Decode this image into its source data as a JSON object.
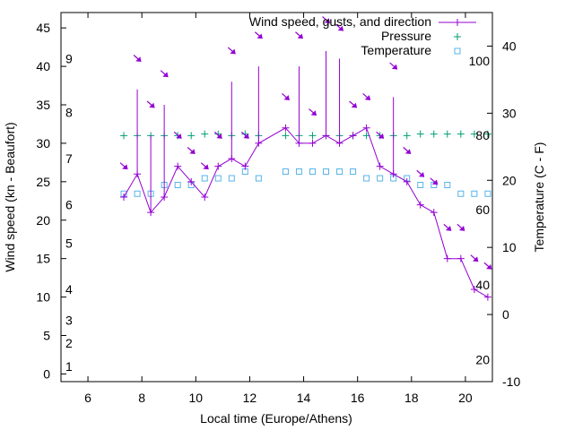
{
  "chart_data": {
    "type": "line",
    "xlabel": "Local time (Europe/Athens)",
    "ylabel": "Wind speed (kn - Beaufort)",
    "y2label": "Temperature (C - F)",
    "xlim": [
      5,
      21
    ],
    "ylim": [
      -1,
      47
    ],
    "y2lim": [
      -10,
      45
    ],
    "xticks": [
      6,
      8,
      10,
      12,
      14,
      16,
      18,
      20
    ],
    "yticks": [
      0,
      5,
      10,
      15,
      20,
      25,
      30,
      35,
      40,
      45
    ],
    "y2ticks": [
      -10,
      0,
      10,
      20,
      30,
      40
    ],
    "beaufort_labels": [
      {
        "label": "1",
        "kn": 1
      },
      {
        "label": "2",
        "kn": 4
      },
      {
        "label": "3",
        "kn": 7
      },
      {
        "label": "4",
        "kn": 11
      },
      {
        "label": "5",
        "kn": 17
      },
      {
        "label": "6",
        "kn": 22
      },
      {
        "label": "7",
        "kn": 28
      },
      {
        "label": "8",
        "kn": 34
      },
      {
        "label": "9",
        "kn": 41
      }
    ],
    "fahrenheit_labels": [
      {
        "label": "20",
        "c": -6.7
      },
      {
        "label": "40",
        "c": 4.4
      },
      {
        "label": "60",
        "c": 15.6
      },
      {
        "label": "80",
        "c": 26.7
      },
      {
        "label": "100",
        "c": 37.8
      }
    ],
    "legend": {
      "wind": "Wind speed, gusts, and direction",
      "pressure": "Pressure",
      "temperature": "Temperature"
    },
    "colors": {
      "wind": "#9400d3",
      "pressure": "#009e73",
      "temperature": "#56b4e9"
    },
    "wind": [
      {
        "x": 7.33,
        "speed": 23,
        "gust": 23
      },
      {
        "x": 7.83,
        "speed": 26,
        "gust": 37
      },
      {
        "x": 8.33,
        "speed": 21,
        "gust": 31
      },
      {
        "x": 8.83,
        "speed": 23,
        "gust": 35
      },
      {
        "x": 9.33,
        "speed": 27,
        "gust": 27
      },
      {
        "x": 9.83,
        "speed": 25,
        "gust": 25
      },
      {
        "x": 10.33,
        "speed": 23,
        "gust": 23
      },
      {
        "x": 10.83,
        "speed": 27,
        "gust": 27
      },
      {
        "x": 11.33,
        "speed": 28,
        "gust": 38
      },
      {
        "x": 11.83,
        "speed": 27,
        "gust": 27
      },
      {
        "x": 12.33,
        "speed": 30,
        "gust": 40
      },
      {
        "x": 13.33,
        "speed": 32,
        "gust": 32
      },
      {
        "x": 13.83,
        "speed": 30,
        "gust": 40
      },
      {
        "x": 14.33,
        "speed": 30,
        "gust": 30
      },
      {
        "x": 14.83,
        "speed": 31,
        "gust": 42
      },
      {
        "x": 15.33,
        "speed": 30,
        "gust": 41
      },
      {
        "x": 15.83,
        "speed": 31,
        "gust": 31
      },
      {
        "x": 16.33,
        "speed": 32,
        "gust": 32
      },
      {
        "x": 16.83,
        "speed": 27,
        "gust": 27
      },
      {
        "x": 17.33,
        "speed": 26,
        "gust": 36
      },
      {
        "x": 17.83,
        "speed": 25,
        "gust": 25
      },
      {
        "x": 18.33,
        "speed": 22,
        "gust": 22
      },
      {
        "x": 18.83,
        "speed": 21,
        "gust": 21
      },
      {
        "x": 19.33,
        "speed": 15,
        "gust": 15
      },
      {
        "x": 19.83,
        "speed": 15,
        "gust": 15
      },
      {
        "x": 20.33,
        "speed": 11,
        "gust": 11
      },
      {
        "x": 20.83,
        "speed": 10,
        "gust": 10
      }
    ],
    "direction_arrows": [
      {
        "x": 7.33,
        "kn": 27
      },
      {
        "x": 7.83,
        "kn": 41
      },
      {
        "x": 8.33,
        "kn": 35
      },
      {
        "x": 8.83,
        "kn": 39
      },
      {
        "x": 9.33,
        "kn": 31
      },
      {
        "x": 9.83,
        "kn": 29
      },
      {
        "x": 10.33,
        "kn": 27
      },
      {
        "x": 10.83,
        "kn": 31
      },
      {
        "x": 11.33,
        "kn": 42
      },
      {
        "x": 11.83,
        "kn": 31
      },
      {
        "x": 12.33,
        "kn": 44
      },
      {
        "x": 13.33,
        "kn": 36
      },
      {
        "x": 13.83,
        "kn": 44
      },
      {
        "x": 14.33,
        "kn": 34
      },
      {
        "x": 14.83,
        "kn": 46
      },
      {
        "x": 15.33,
        "kn": 45
      },
      {
        "x": 15.83,
        "kn": 35
      },
      {
        "x": 16.33,
        "kn": 36
      },
      {
        "x": 16.83,
        "kn": 31
      },
      {
        "x": 17.33,
        "kn": 40
      },
      {
        "x": 17.83,
        "kn": 29
      },
      {
        "x": 18.33,
        "kn": 26
      },
      {
        "x": 18.83,
        "kn": 25
      },
      {
        "x": 19.33,
        "kn": 19
      },
      {
        "x": 19.83,
        "kn": 19
      },
      {
        "x": 20.33,
        "kn": 15
      },
      {
        "x": 20.83,
        "kn": 14
      }
    ],
    "pressure": [
      {
        "x": 7.33,
        "kn": 31
      },
      {
        "x": 7.83,
        "kn": 31
      },
      {
        "x": 8.33,
        "kn": 31
      },
      {
        "x": 8.83,
        "kn": 31
      },
      {
        "x": 9.33,
        "kn": 31
      },
      {
        "x": 9.83,
        "kn": 31
      },
      {
        "x": 10.33,
        "kn": 31.2
      },
      {
        "x": 10.83,
        "kn": 31.2
      },
      {
        "x": 11.33,
        "kn": 31
      },
      {
        "x": 11.83,
        "kn": 31.2
      },
      {
        "x": 12.33,
        "kn": 31
      },
      {
        "x": 13.33,
        "kn": 31
      },
      {
        "x": 13.83,
        "kn": 31
      },
      {
        "x": 14.33,
        "kn": 31
      },
      {
        "x": 14.83,
        "kn": 31
      },
      {
        "x": 15.33,
        "kn": 31
      },
      {
        "x": 15.83,
        "kn": 31
      },
      {
        "x": 16.33,
        "kn": 31
      },
      {
        "x": 16.83,
        "kn": 31
      },
      {
        "x": 17.33,
        "kn": 31
      },
      {
        "x": 17.83,
        "kn": 31
      },
      {
        "x": 18.33,
        "kn": 31.2
      },
      {
        "x": 18.83,
        "kn": 31.2
      },
      {
        "x": 19.33,
        "kn": 31.2
      },
      {
        "x": 19.83,
        "kn": 31.2
      },
      {
        "x": 20.33,
        "kn": 31.2
      },
      {
        "x": 20.83,
        "kn": 31.2
      }
    ],
    "temperature": [
      {
        "x": 7.33,
        "c": 18
      },
      {
        "x": 7.83,
        "c": 18
      },
      {
        "x": 8.33,
        "c": 18
      },
      {
        "x": 8.83,
        "c": 19.3
      },
      {
        "x": 9.33,
        "c": 19.3
      },
      {
        "x": 9.83,
        "c": 19.3
      },
      {
        "x": 10.33,
        "c": 20.3
      },
      {
        "x": 10.83,
        "c": 20.3
      },
      {
        "x": 11.33,
        "c": 20.3
      },
      {
        "x": 11.83,
        "c": 21.3
      },
      {
        "x": 12.33,
        "c": 20.3
      },
      {
        "x": 13.33,
        "c": 21.3
      },
      {
        "x": 13.83,
        "c": 21.3
      },
      {
        "x": 14.33,
        "c": 21.3
      },
      {
        "x": 14.83,
        "c": 21.3
      },
      {
        "x": 15.33,
        "c": 21.3
      },
      {
        "x": 15.83,
        "c": 21.3
      },
      {
        "x": 16.33,
        "c": 20.3
      },
      {
        "x": 16.83,
        "c": 20.3
      },
      {
        "x": 17.33,
        "c": 20.3
      },
      {
        "x": 17.83,
        "c": 20.3
      },
      {
        "x": 18.33,
        "c": 19.3
      },
      {
        "x": 18.83,
        "c": 19.3
      },
      {
        "x": 19.33,
        "c": 19.3
      },
      {
        "x": 19.83,
        "c": 18
      },
      {
        "x": 20.33,
        "c": 18
      },
      {
        "x": 20.83,
        "c": 18
      }
    ]
  }
}
